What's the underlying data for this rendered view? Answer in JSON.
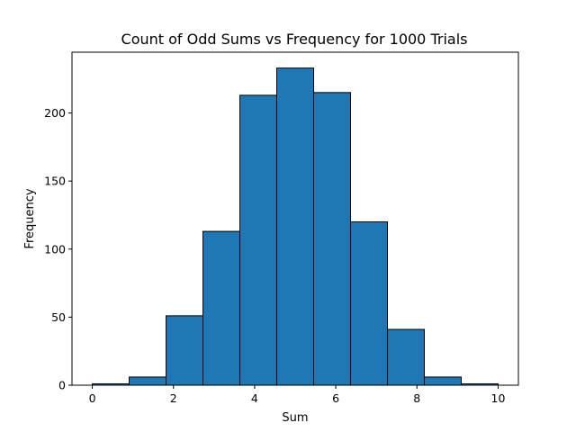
{
  "chart_data": {
    "type": "bar",
    "title": "Count of Odd Sums vs Frequency for 1000 Trials",
    "xlabel": "Sum",
    "ylabel": "Frequency",
    "bins": [
      {
        "start": 0.0,
        "end": 0.909,
        "value": 1
      },
      {
        "start": 0.909,
        "end": 1.818,
        "value": 6
      },
      {
        "start": 1.818,
        "end": 2.727,
        "value": 51
      },
      {
        "start": 2.727,
        "end": 3.636,
        "value": 113
      },
      {
        "start": 3.636,
        "end": 4.545,
        "value": 213
      },
      {
        "start": 4.545,
        "end": 5.455,
        "value": 233
      },
      {
        "start": 5.455,
        "end": 6.364,
        "value": 215
      },
      {
        "start": 6.364,
        "end": 7.273,
        "value": 120
      },
      {
        "start": 7.273,
        "end": 8.182,
        "value": 41
      },
      {
        "start": 8.182,
        "end": 9.091,
        "value": 6
      },
      {
        "start": 9.091,
        "end": 10.0,
        "value": 1
      }
    ],
    "xlim": [
      -0.5,
      10.5
    ],
    "ylim": [
      0,
      244.65
    ],
    "xticks": [
      0,
      2,
      4,
      6,
      8,
      10
    ],
    "yticks": [
      0,
      50,
      100,
      150,
      200
    ],
    "bar_color": "#1f77b4",
    "edge_color": "#000000",
    "grid": false,
    "legend": "none"
  }
}
